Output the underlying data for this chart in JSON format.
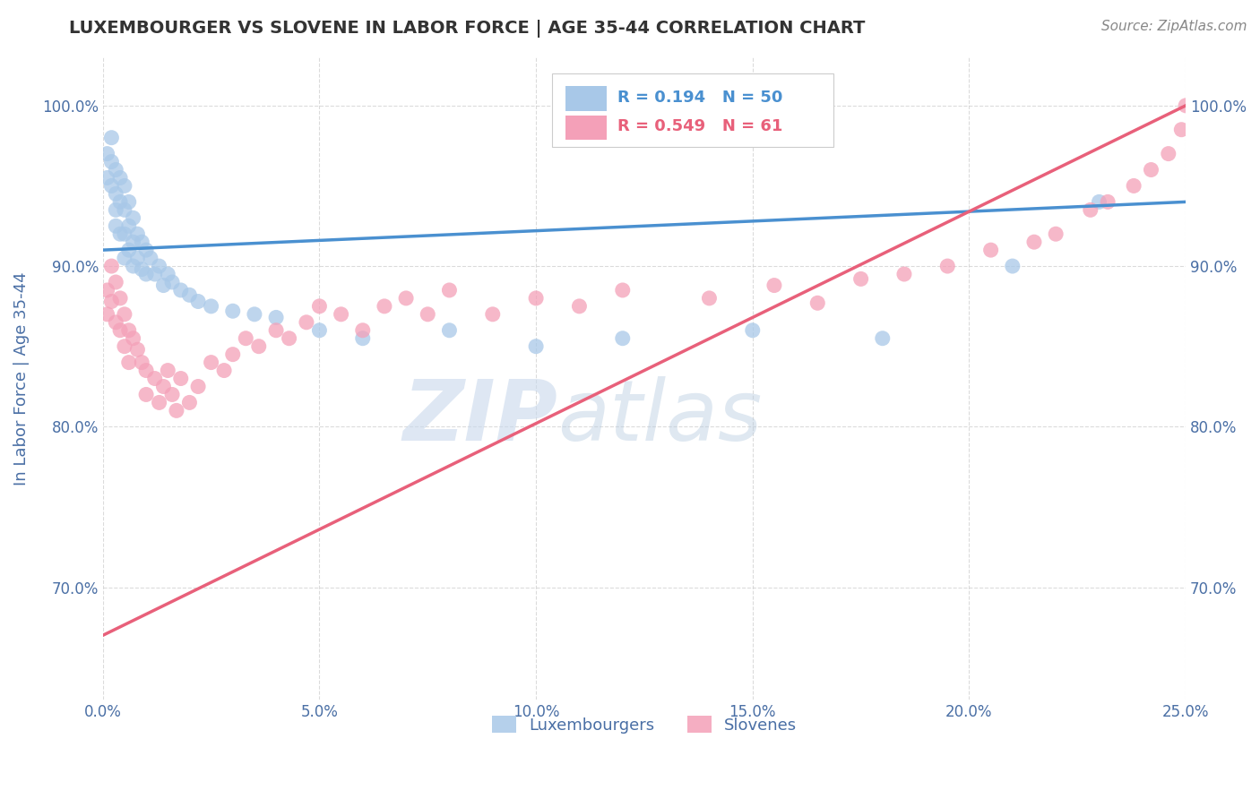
{
  "title": "LUXEMBOURGER VS SLOVENE IN LABOR FORCE | AGE 35-44 CORRELATION CHART",
  "source": "Source: ZipAtlas.com",
  "ylabel": "In Labor Force | Age 35-44",
  "xlim": [
    0.0,
    0.25
  ],
  "ylim": [
    0.63,
    1.03
  ],
  "xticks": [
    0.0,
    0.05,
    0.1,
    0.15,
    0.2,
    0.25
  ],
  "yticks": [
    0.7,
    0.8,
    0.9,
    1.0
  ],
  "xticklabels": [
    "0.0%",
    "5.0%",
    "10.0%",
    "15.0%",
    "20.0%",
    "25.0%"
  ],
  "yticklabels": [
    "70.0%",
    "80.0%",
    "90.0%",
    "100.0%"
  ],
  "blue_R": 0.194,
  "blue_N": 50,
  "pink_R": 0.549,
  "pink_N": 61,
  "blue_color": "#a8c8e8",
  "pink_color": "#f4a0b8",
  "blue_line_color": "#4a90d0",
  "pink_line_color": "#e8607a",
  "blue_scatter_x": [
    0.001,
    0.001,
    0.002,
    0.002,
    0.002,
    0.003,
    0.003,
    0.003,
    0.003,
    0.004,
    0.004,
    0.004,
    0.005,
    0.005,
    0.005,
    0.005,
    0.006,
    0.006,
    0.006,
    0.007,
    0.007,
    0.007,
    0.008,
    0.008,
    0.009,
    0.009,
    0.01,
    0.01,
    0.011,
    0.012,
    0.013,
    0.014,
    0.015,
    0.016,
    0.018,
    0.02,
    0.022,
    0.025,
    0.03,
    0.035,
    0.04,
    0.05,
    0.06,
    0.08,
    0.1,
    0.12,
    0.15,
    0.18,
    0.21,
    0.23
  ],
  "blue_scatter_y": [
    0.97,
    0.955,
    0.98,
    0.965,
    0.95,
    0.96,
    0.945,
    0.935,
    0.925,
    0.955,
    0.94,
    0.92,
    0.95,
    0.935,
    0.92,
    0.905,
    0.94,
    0.925,
    0.91,
    0.93,
    0.915,
    0.9,
    0.92,
    0.905,
    0.915,
    0.898,
    0.91,
    0.895,
    0.905,
    0.895,
    0.9,
    0.888,
    0.895,
    0.89,
    0.885,
    0.882,
    0.878,
    0.875,
    0.872,
    0.87,
    0.868,
    0.86,
    0.855,
    0.86,
    0.85,
    0.855,
    0.86,
    0.855,
    0.9,
    0.94
  ],
  "pink_scatter_x": [
    0.001,
    0.001,
    0.002,
    0.002,
    0.003,
    0.003,
    0.004,
    0.004,
    0.005,
    0.005,
    0.006,
    0.006,
    0.007,
    0.008,
    0.009,
    0.01,
    0.01,
    0.012,
    0.013,
    0.014,
    0.015,
    0.016,
    0.017,
    0.018,
    0.02,
    0.022,
    0.025,
    0.028,
    0.03,
    0.033,
    0.036,
    0.04,
    0.043,
    0.047,
    0.05,
    0.055,
    0.06,
    0.065,
    0.07,
    0.075,
    0.08,
    0.09,
    0.1,
    0.11,
    0.12,
    0.14,
    0.155,
    0.165,
    0.175,
    0.185,
    0.195,
    0.205,
    0.215,
    0.22,
    0.228,
    0.232,
    0.238,
    0.242,
    0.246,
    0.249,
    0.25
  ],
  "pink_scatter_y": [
    0.885,
    0.87,
    0.9,
    0.878,
    0.89,
    0.865,
    0.88,
    0.86,
    0.87,
    0.85,
    0.86,
    0.84,
    0.855,
    0.848,
    0.84,
    0.835,
    0.82,
    0.83,
    0.815,
    0.825,
    0.835,
    0.82,
    0.81,
    0.83,
    0.815,
    0.825,
    0.84,
    0.835,
    0.845,
    0.855,
    0.85,
    0.86,
    0.855,
    0.865,
    0.875,
    0.87,
    0.86,
    0.875,
    0.88,
    0.87,
    0.885,
    0.87,
    0.88,
    0.875,
    0.885,
    0.88,
    0.888,
    0.877,
    0.892,
    0.895,
    0.9,
    0.91,
    0.915,
    0.92,
    0.935,
    0.94,
    0.95,
    0.96,
    0.97,
    0.985,
    1.0
  ],
  "blue_line_x0": 0.0,
  "blue_line_y0": 0.91,
  "blue_line_x1": 0.25,
  "blue_line_y1": 0.94,
  "pink_line_x0": 0.0,
  "pink_line_y0": 0.67,
  "pink_line_x1": 0.25,
  "pink_line_y1": 1.0,
  "watermark_zip": "ZIP",
  "watermark_atlas": "atlas",
  "background_color": "#ffffff",
  "title_color": "#333333",
  "tick_label_color": "#4a6fa5",
  "axis_label_color": "#4a6fa5",
  "legend_blue_color": "#4a90d0",
  "legend_pink_color": "#e8607a",
  "legend_N_color": "#e8607a"
}
